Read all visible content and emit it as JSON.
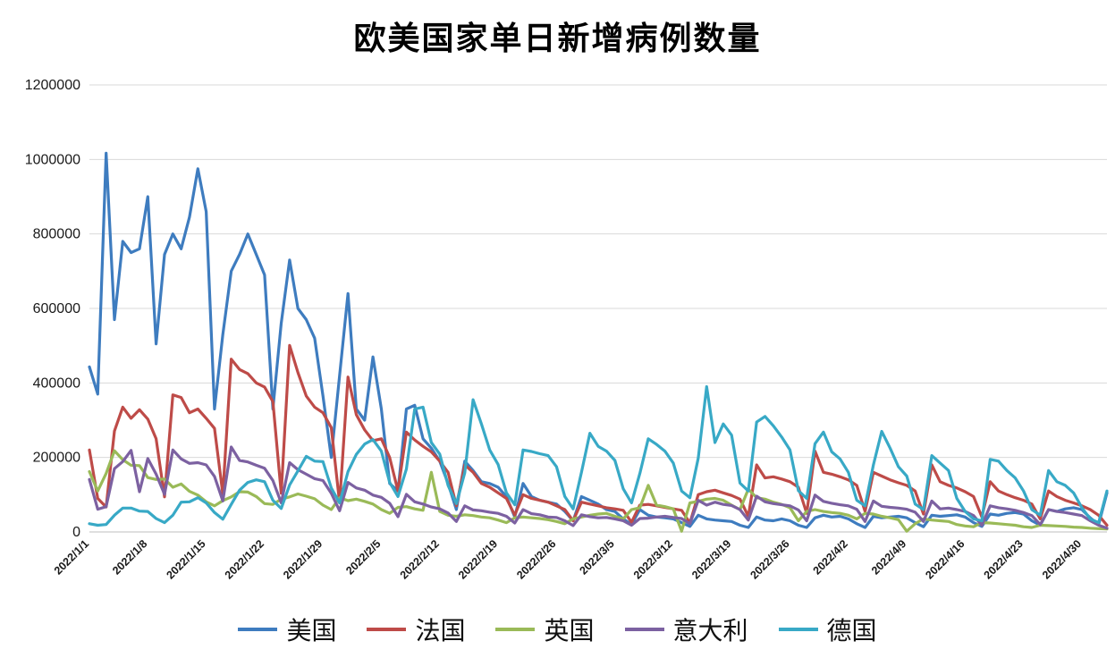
{
  "title": "欧美国家单日新增病例数量",
  "legend": [
    "美国",
    "法国",
    "英国",
    "意大利",
    "德国"
  ],
  "chart_data": {
    "type": "line",
    "title": "欧美国家单日新增病例数量",
    "xlabel": "",
    "ylabel": "",
    "ylim": [
      0,
      1200000
    ],
    "y_ticks": [
      0,
      200000,
      400000,
      600000,
      800000,
      1000000,
      1200000
    ],
    "grid": "horizontal",
    "legend_position": "bottom",
    "x_tick_labels": [
      "2022/1/1",
      "2022/1/8",
      "2022/1/15",
      "2022/1/22",
      "2022/1/29",
      "2022/2/5",
      "2022/2/12",
      "2022/2/19",
      "2022/2/26",
      "2022/3/5",
      "2022/3/12",
      "2022/3/19",
      "2022/3/26",
      "2022/4/2",
      "2022/4/9",
      "2022/4/16",
      "2022/4/23",
      "2022/4/30"
    ],
    "points_per_tick": 7,
    "series": [
      {
        "id": "usa",
        "name": "美国",
        "color": "#3E7CBF",
        "values": [
          443000,
          370000,
          1017000,
          570000,
          780000,
          750000,
          760000,
          900000,
          505000,
          745000,
          800000,
          760000,
          845000,
          975000,
          860000,
          330000,
          530000,
          700000,
          745000,
          800000,
          745000,
          690000,
          330000,
          560000,
          730000,
          600000,
          570000,
          520000,
          365000,
          200000,
          420000,
          640000,
          330000,
          300000,
          470000,
          330000,
          130000,
          110000,
          330000,
          340000,
          250000,
          225000,
          190000,
          130000,
          60000,
          190000,
          165000,
          135000,
          130000,
          120000,
          95000,
          40000,
          130000,
          95000,
          85000,
          80000,
          75000,
          55000,
          30000,
          95000,
          85000,
          75000,
          60000,
          55000,
          35000,
          20000,
          60000,
          45000,
          40000,
          38000,
          35000,
          25000,
          15000,
          45000,
          35000,
          32000,
          30000,
          28000,
          18000,
          12000,
          40000,
          32000,
          30000,
          35000,
          30000,
          18000,
          12000,
          38000,
          45000,
          40000,
          42000,
          35000,
          22000,
          12000,
          42000,
          38000,
          40000,
          42000,
          38000,
          25000,
          14000,
          45000,
          42000,
          44000,
          46000,
          40000,
          25000,
          15000,
          48000,
          45000,
          50000,
          52000,
          48000,
          30000,
          18000,
          60000,
          55000,
          62000,
          65000,
          60000,
          38000,
          20000,
          105000
        ]
      },
      {
        "id": "france",
        "name": "法国",
        "color": "#BE4B48",
        "values": [
          220000,
          90000,
          67000,
          271000,
          335000,
          305000,
          328000,
          303000,
          250000,
          94000,
          368000,
          361000,
          320000,
          330000,
          305000,
          278000,
          102000,
          464000,
          436000,
          425000,
          400000,
          389000,
          350000,
          104000,
          501000,
          428000,
          365000,
          335000,
          320000,
          280000,
          78000,
          416000,
          315000,
          274000,
          245000,
          250000,
          200000,
          110000,
          268000,
          247000,
          230000,
          215000,
          190000,
          160000,
          70000,
          180000,
          160000,
          130000,
          120000,
          105000,
          90000,
          45000,
          100000,
          90000,
          85000,
          80000,
          70000,
          60000,
          30000,
          80000,
          75000,
          70000,
          65000,
          62000,
          58000,
          26000,
          72000,
          74000,
          70000,
          66000,
          62000,
          58000,
          24000,
          100000,
          108000,
          112000,
          105000,
          98000,
          88000,
          42000,
          180000,
          145000,
          148000,
          142000,
          135000,
          120000,
          50000,
          217000,
          160000,
          155000,
          148000,
          140000,
          125000,
          55000,
          160000,
          150000,
          140000,
          132000,
          125000,
          110000,
          48000,
          180000,
          135000,
          125000,
          118000,
          108000,
          95000,
          40000,
          135000,
          110000,
          100000,
          92000,
          85000,
          75000,
          35000,
          110000,
          95000,
          85000,
          78000,
          70000,
          60000,
          45000,
          18000
        ]
      },
      {
        "id": "uk",
        "name": "英国",
        "color": "#9ABA58",
        "values": [
          162000,
          110000,
          157000,
          218000,
          194000,
          179000,
          178000,
          146000,
          141000,
          142000,
          120000,
          129000,
          109000,
          99000,
          81000,
          70000,
          84000,
          94000,
          108000,
          107000,
          95000,
          76000,
          74000,
          88000,
          94000,
          102000,
          96000,
          89000,
          72000,
          60000,
          92000,
          84000,
          88000,
          82000,
          75000,
          60000,
          50000,
          66000,
          68000,
          62000,
          58000,
          160000,
          55000,
          45000,
          42000,
          46000,
          44000,
          40000,
          38000,
          32000,
          25000,
          38000,
          40000,
          38000,
          36000,
          33000,
          28000,
          22000,
          35000,
          40000,
          45000,
          48000,
          50000,
          42000,
          35000,
          60000,
          65000,
          125000,
          72000,
          68000,
          62000,
          2000,
          78000,
          82000,
          88000,
          90000,
          85000,
          72000,
          60000,
          115000,
          92000,
          88000,
          80000,
          74000,
          65000,
          30000,
          55000,
          60000,
          55000,
          52000,
          50000,
          45000,
          35000,
          50000,
          48000,
          42000,
          38000,
          33000,
          2000,
          22000,
          35000,
          32000,
          30000,
          28000,
          20000,
          16000,
          14000,
          25000,
          24000,
          22000,
          20000,
          18000,
          14000,
          12000,
          18000,
          17000,
          16000,
          15000,
          13000,
          12000,
          10000,
          9000,
          8000
        ]
      },
      {
        "id": "italy",
        "name": "意大利",
        "color": "#7C61A1",
        "values": [
          141000,
          61000,
          68000,
          170000,
          189000,
          219000,
          108000,
          197000,
          155000,
          101000,
          220000,
          196000,
          184000,
          186000,
          180000,
          149000,
          83000,
          228000,
          192000,
          188000,
          179000,
          171000,
          138000,
          78000,
          186000,
          167000,
          155000,
          143000,
          138000,
          104000,
          57000,
          133000,
          118000,
          112000,
          99000,
          93000,
          77000,
          41000,
          101000,
          81000,
          75000,
          67000,
          62000,
          51000,
          28000,
          70000,
          59000,
          57000,
          53000,
          50000,
          42000,
          24000,
          60000,
          49000,
          46000,
          40000,
          39000,
          30000,
          17000,
          46000,
          41000,
          38000,
          39000,
          35000,
          30000,
          18000,
          36000,
          37000,
          40000,
          42000,
          39000,
          36000,
          22000,
          85000,
          72000,
          80000,
          74000,
          71000,
          60000,
          32000,
          96000,
          81000,
          76000,
          73000,
          70000,
          59000,
          30000,
          99000,
          82000,
          77000,
          73000,
          70000,
          61000,
          28000,
          83000,
          69000,
          66000,
          64000,
          61000,
          53000,
          28000,
          83000,
          62000,
          64000,
          60000,
          55000,
          44000,
          18000,
          70000,
          65000,
          62000,
          58000,
          52000,
          44000,
          20000,
          60000,
          55000,
          52000,
          48000,
          44000,
          30000,
          18000,
          10000
        ]
      },
      {
        "id": "germany",
        "name": "德国",
        "color": "#38A9C6",
        "values": [
          22000,
          18000,
          20000,
          45000,
          64000,
          64000,
          56000,
          55000,
          36000,
          25000,
          45000,
          80000,
          81000,
          92000,
          78000,
          52000,
          34000,
          74000,
          112000,
          133000,
          140000,
          135000,
          85000,
          63000,
          126000,
          164000,
          203000,
          190000,
          189000,
          118000,
          78000,
          162000,
          208000,
          236000,
          248000,
          217000,
          133000,
          95000,
          169000,
          330000,
          335000,
          240000,
          209000,
          125000,
          76000,
          159000,
          355000,
          290000,
          220000,
          181000,
          105000,
          73000,
          220000,
          216000,
          210000,
          205000,
          175000,
          95000,
          62000,
          160000,
          265000,
          230000,
          217000,
          192000,
          116000,
          78000,
          157000,
          250000,
          235000,
          217000,
          185000,
          110000,
          92000,
          198000,
          390000,
          240000,
          290000,
          260000,
          131000,
          110000,
          295000,
          310000,
          285000,
          255000,
          220000,
          111000,
          90000,
          237000,
          268000,
          215000,
          196000,
          160000,
          85000,
          70000,
          180000,
          270000,
          225000,
          175000,
          150000,
          75000,
          60000,
          205000,
          185000,
          165000,
          90000,
          55000,
          35000,
          30000,
          195000,
          190000,
          165000,
          145000,
          110000,
          60000,
          45000,
          165000,
          135000,
          125000,
          105000,
          65000,
          35000,
          25000,
          110000
        ]
      }
    ]
  }
}
